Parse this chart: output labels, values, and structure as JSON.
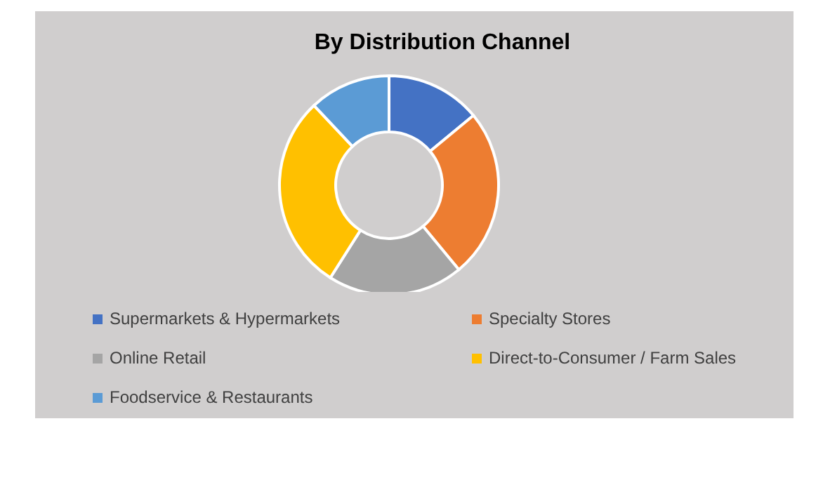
{
  "chart_data": {
    "type": "donut",
    "title": "By Distribution Channel",
    "categories": [
      "Supermarkets & Hypermarkets",
      "Specialty Stores",
      "Online Retail",
      "Direct-to-Consumer / Farm Sales",
      "Foodservice & Restaurants"
    ],
    "values": [
      14,
      25,
      20,
      29,
      12
    ],
    "colors": [
      "#4472c4",
      "#ed7d31",
      "#a5a5a5",
      "#ffc000",
      "#5b9bd5"
    ],
    "legend": "bottom"
  }
}
